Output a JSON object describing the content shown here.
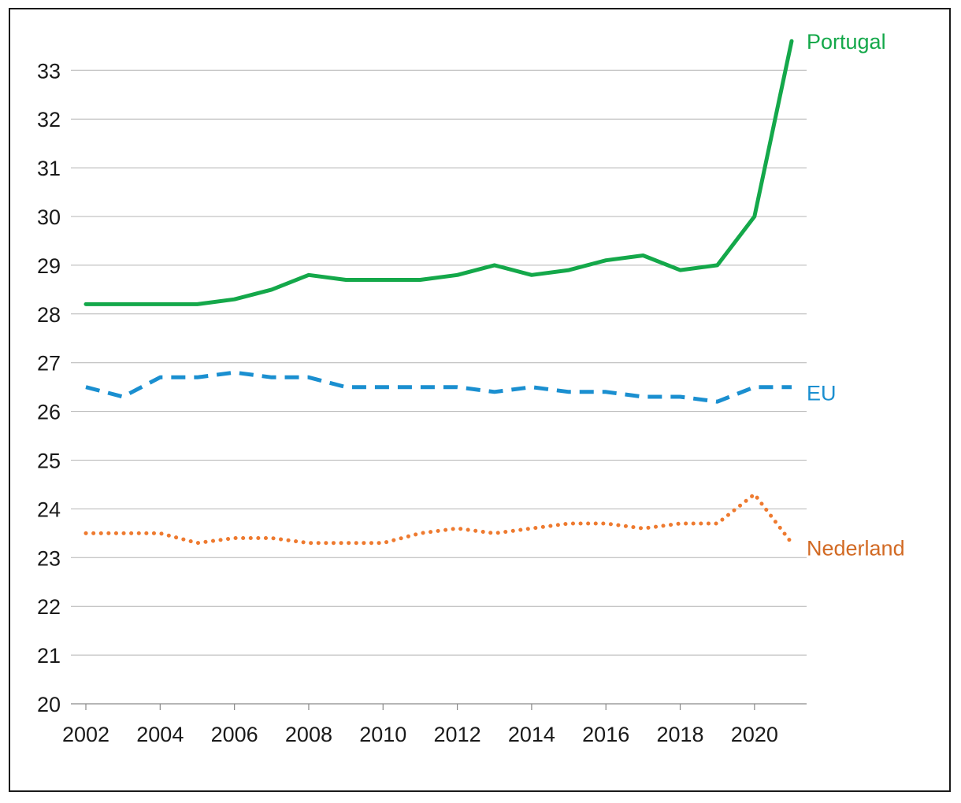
{
  "chart_data": {
    "type": "line",
    "title": "",
    "xlabel": "",
    "ylabel": "",
    "ylim": [
      20,
      33.6
    ],
    "xlim": [
      2002,
      2021
    ],
    "grid": true,
    "x": [
      2002,
      2003,
      2004,
      2005,
      2006,
      2007,
      2008,
      2009,
      2010,
      2011,
      2012,
      2013,
      2014,
      2015,
      2016,
      2017,
      2018,
      2019,
      2020,
      2021
    ],
    "x_ticks": [
      2002,
      2004,
      2006,
      2008,
      2010,
      2012,
      2014,
      2016,
      2018,
      2020
    ],
    "y_ticks": [
      20,
      21,
      22,
      23,
      24,
      25,
      26,
      27,
      28,
      29,
      30,
      31,
      32,
      33
    ],
    "series": [
      {
        "name": "Portugal",
        "style": "solid",
        "color": "#14a84a",
        "values": [
          28.2,
          28.2,
          28.2,
          28.2,
          28.3,
          28.5,
          28.8,
          28.7,
          28.7,
          28.7,
          28.8,
          29.0,
          28.8,
          28.9,
          29.1,
          29.2,
          28.9,
          29.0,
          30.0,
          33.6
        ]
      },
      {
        "name": "EU",
        "style": "dashed",
        "color": "#1a8fd0",
        "values": [
          26.5,
          26.3,
          26.7,
          26.7,
          26.8,
          26.7,
          26.7,
          26.5,
          26.5,
          26.5,
          26.5,
          26.4,
          26.5,
          26.4,
          26.4,
          26.3,
          26.3,
          26.2,
          26.5,
          26.5
        ]
      },
      {
        "name": "Nederland",
        "style": "dotted",
        "color": "#ee7a2f",
        "values": [
          23.5,
          23.5,
          23.5,
          23.3,
          23.4,
          23.4,
          23.3,
          23.3,
          23.3,
          23.5,
          23.6,
          23.5,
          23.6,
          23.7,
          23.7,
          23.6,
          23.7,
          23.7,
          24.3,
          23.3
        ]
      }
    ],
    "legend": "inline-end-of-line",
    "label_colors": {
      "Portugal": "#14a84a",
      "EU": "#1a8fd0",
      "Nederland": "#d26a24"
    }
  }
}
